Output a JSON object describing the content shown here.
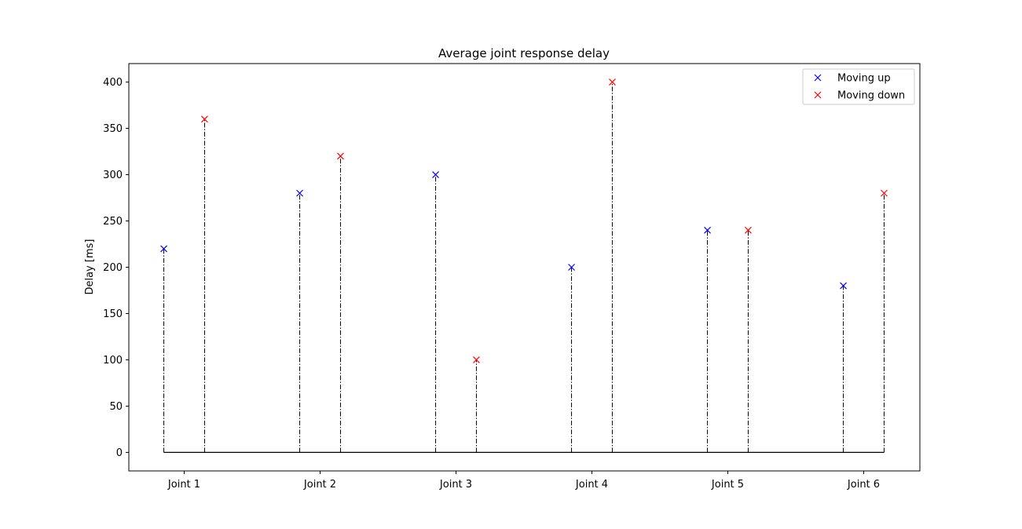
{
  "chart_data": {
    "type": "scatter",
    "title": "Average joint response delay",
    "xlabel": "",
    "ylabel": "Delay [ms]",
    "categories": [
      "Joint 1",
      "Joint 2",
      "Joint 3",
      "Joint 4",
      "Joint 5",
      "Joint 6"
    ],
    "ylim": [
      -20,
      420
    ],
    "yticks": [
      0,
      50,
      100,
      150,
      200,
      250,
      300,
      350,
      400
    ],
    "grid": false,
    "legend_position": "top-right",
    "marker": "x",
    "stem_style": "dash-dot",
    "series": [
      {
        "name": "Moving up",
        "color": "#0000ff",
        "offset": -0.15,
        "values": [
          220,
          280,
          300,
          200,
          240,
          180
        ]
      },
      {
        "name": "Moving down",
        "color": "#ff0000",
        "offset": 0.15,
        "values": [
          360,
          320,
          100,
          400,
          240,
          280
        ]
      }
    ]
  }
}
